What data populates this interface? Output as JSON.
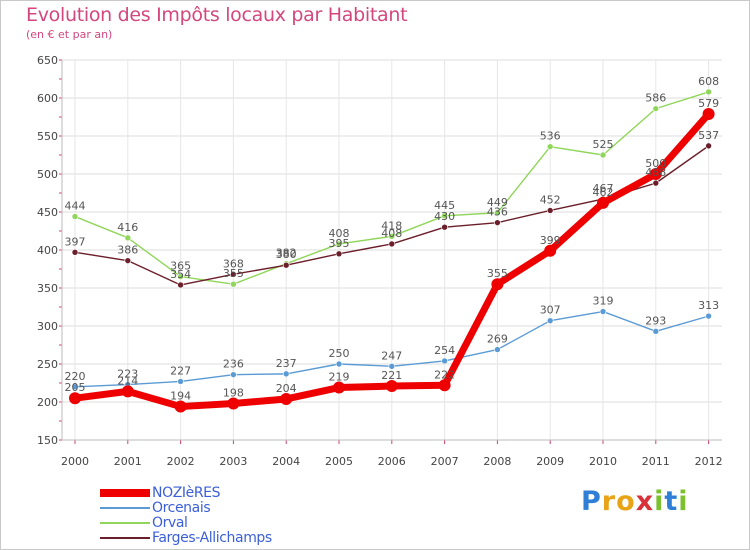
{
  "chart_data": {
    "type": "line",
    "title": "Evolution des Impôts locaux par Habitant",
    "subtitle": "(en € et par an)",
    "x": [
      "2000",
      "2001",
      "2002",
      "2003",
      "2004",
      "2005",
      "2006",
      "2007",
      "2008",
      "2009",
      "2010",
      "2011",
      "2012"
    ],
    "ylim": [
      150,
      650
    ],
    "yticks": [
      150,
      200,
      250,
      300,
      350,
      400,
      450,
      500,
      550,
      600,
      650
    ],
    "grid": true,
    "legend_position": "bottom-left",
    "series": [
      {
        "name": "Orcenais",
        "color": "#5b9bd5",
        "values": [
          220,
          223,
          227,
          236,
          237,
          250,
          247,
          254,
          269,
          307,
          319,
          293,
          313
        ]
      },
      {
        "name": "Orval",
        "color": "#8fd65a",
        "values": [
          444,
          416,
          365,
          355,
          382,
          408,
          418,
          445,
          449,
          536,
          525,
          586,
          608
        ]
      },
      {
        "name": "Farges-Allichamps",
        "color": "#6b1f2a",
        "values": [
          397,
          386,
          354,
          368,
          380,
          395,
          408,
          430,
          436,
          452,
          467,
          488,
          537
        ]
      },
      {
        "name": "NOZIèRES",
        "color": "#ee0000",
        "values": [
          205,
          214,
          194,
          198,
          204,
          219,
          221,
          222,
          355,
          399,
          462,
          500,
          579
        ]
      }
    ],
    "legend": [
      "NOZIèRES",
      "Orcenais",
      "Orval",
      "Farges-Allichamps"
    ]
  },
  "logo": {
    "letters": [
      "P",
      "r",
      "o",
      "x",
      "i",
      "t",
      "i"
    ]
  }
}
